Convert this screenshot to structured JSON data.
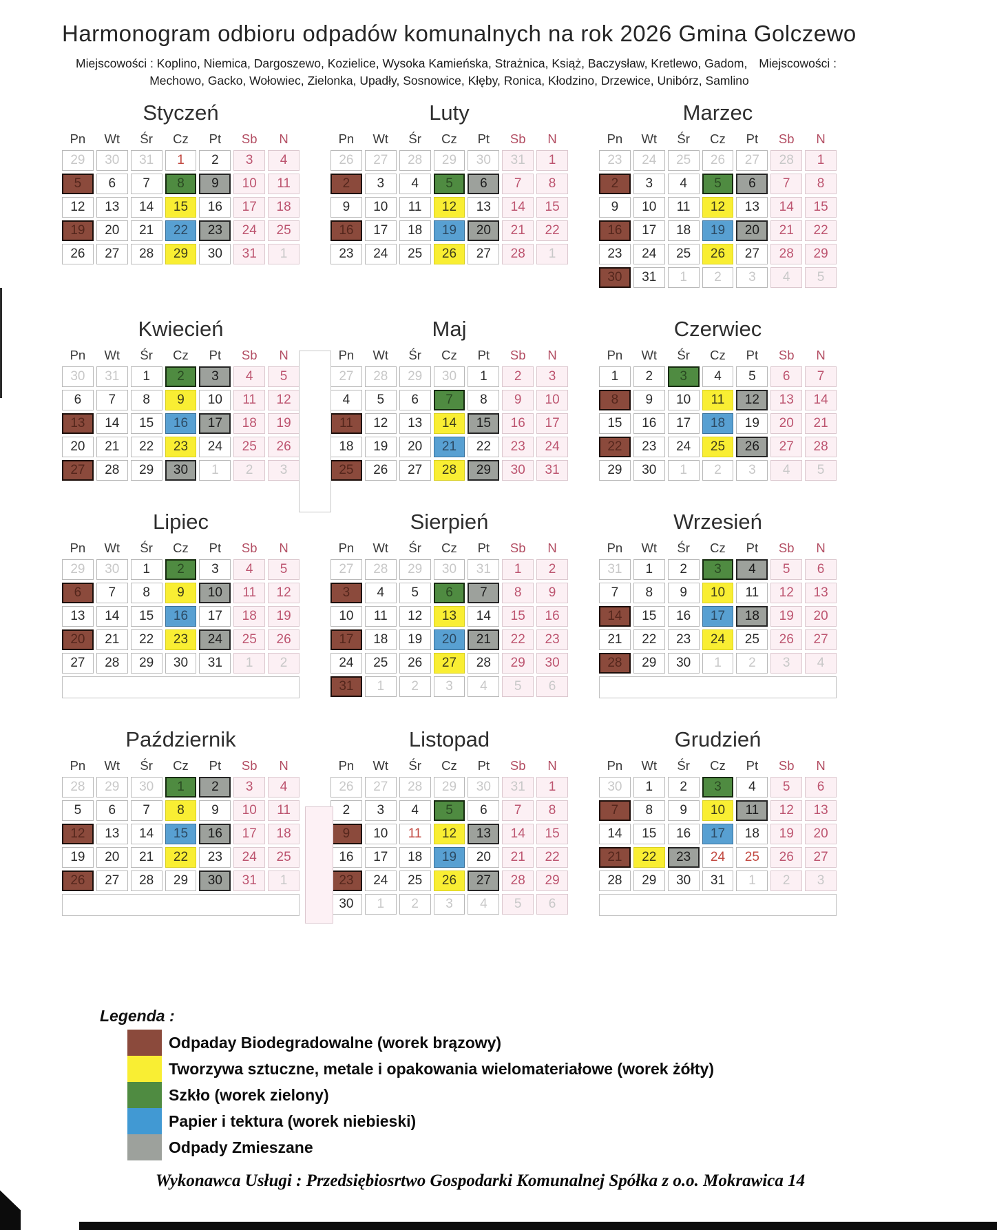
{
  "page": {
    "title": "Harmonogram odbioru odpadów komunalnych  na rok 2026 Gmina Golczewo",
    "places_label_left": "Miejscowości : Koplino, Niemica, Dargoszewo, Kozielice, Wysoka Kamieńska, Strażnica, Książ, Baczysław, Kretlewo, Gadom,",
    "places_label_right": "Miejscowości :",
    "places_line2": "Mechowo, Gacko, Wołowiec, Zielonka, Upadły, Sosnowice, Kłęby, Ronica, Kłodzino, Drzewice, Unibórz, Samlino",
    "footer": "Wykonawca Usługi : Przedsiębiosrtwo Gospodarki Komunalnej Spółka z o.o. Mokrawica 14"
  },
  "weekday_headers": [
    "Pn",
    "Wt",
    "Śr",
    "Cz",
    "Pt",
    "Sb",
    "N"
  ],
  "colors": {
    "brown": "#8b4a3c",
    "yellow": "#f9ee33",
    "green": "#4f8b41",
    "blue": "#4199d3",
    "gray": "#9da19c",
    "weekend_bg": "#fcf0f4",
    "weekend_text": "#bd5570",
    "holiday_text": "#c24a42",
    "outside_text": "#c8c8c8"
  },
  "legend": {
    "title": "Legenda :",
    "items": [
      {
        "color_key": "brown",
        "label": "Odpaday Biodegradowalne (worek brązowy)"
      },
      {
        "color_key": "yellow",
        "label": "Tworzywa sztuczne, metale i opakowania wielomateriałowe (worek żółty)"
      },
      {
        "color_key": "green",
        "label": "Szkło (worek zielony)"
      },
      {
        "color_key": "blue",
        "label": "Papier i tektura (worek niebieski)"
      },
      {
        "color_key": "gray",
        "label": "Odpady Zmieszane"
      }
    ]
  },
  "cell_code_legend": {
    "n": "normal",
    "o": "outside-month",
    "w": "weekend",
    "h": "holiday",
    "B": "brown-bio",
    "Y": "yellow-plastics",
    "G": "green-glass",
    "L": "blue-paper",
    "S": "gray-mixed"
  },
  "months": [
    {
      "name": "Styczeń",
      "empty_row": false,
      "weeks": [
        [
          "29o",
          "30o",
          "31o",
          "1h",
          "2n",
          "3w",
          "4w"
        ],
        [
          "5B",
          "6n",
          "7n",
          "8G",
          "9S",
          "10w",
          "11w"
        ],
        [
          "12n",
          "13n",
          "14n",
          "15Y",
          "16n",
          "17w",
          "18w"
        ],
        [
          "19B",
          "20n",
          "21n",
          "22L",
          "23S",
          "24w",
          "25w"
        ],
        [
          "26n",
          "27n",
          "28n",
          "29Y",
          "30n",
          "31w",
          "1o"
        ]
      ]
    },
    {
      "name": "Luty",
      "empty_row": false,
      "weeks": [
        [
          "26o",
          "27o",
          "28o",
          "29o",
          "30o",
          "31o",
          "1w"
        ],
        [
          "2B",
          "3n",
          "4n",
          "5G",
          "6S",
          "7w",
          "8w"
        ],
        [
          "9n",
          "10n",
          "11n",
          "12Y",
          "13n",
          "14w",
          "15w"
        ],
        [
          "16B",
          "17n",
          "18n",
          "19L",
          "20S",
          "21w",
          "22w"
        ],
        [
          "23n",
          "24n",
          "25n",
          "26Y",
          "27n",
          "28w",
          "1o"
        ]
      ]
    },
    {
      "name": "Marzec",
      "empty_row": false,
      "weeks": [
        [
          "23o",
          "24o",
          "25o",
          "26o",
          "27o",
          "28o",
          "1w"
        ],
        [
          "2B",
          "3n",
          "4n",
          "5G",
          "6S",
          "7w",
          "8w"
        ],
        [
          "9n",
          "10n",
          "11n",
          "12Y",
          "13n",
          "14w",
          "15w"
        ],
        [
          "16B",
          "17n",
          "18n",
          "19L",
          "20S",
          "21w",
          "22w"
        ],
        [
          "23n",
          "24n",
          "25n",
          "26Y",
          "27n",
          "28w",
          "29w"
        ],
        [
          "30B",
          "31n",
          "1o",
          "2o",
          "3o",
          "4o",
          "5o"
        ]
      ]
    },
    {
      "name": "Kwiecień",
      "empty_row": false,
      "weeks": [
        [
          "30o",
          "31o",
          "1n",
          "2G",
          "3S",
          "4w",
          "5w"
        ],
        [
          "6n",
          "7n",
          "8n",
          "9Y",
          "10n",
          "11w",
          "12w"
        ],
        [
          "13B",
          "14n",
          "15n",
          "16L",
          "17S",
          "18w",
          "19w"
        ],
        [
          "20n",
          "21n",
          "22n",
          "23Y",
          "24n",
          "25w",
          "26w"
        ],
        [
          "27B",
          "28n",
          "29n",
          "30S",
          "1o",
          "2o",
          "3o"
        ]
      ]
    },
    {
      "name": "Maj",
      "empty_row": false,
      "weeks": [
        [
          "27o",
          "28o",
          "29o",
          "30o",
          "1n",
          "2w",
          "3w"
        ],
        [
          "4n",
          "5n",
          "6n",
          "7G",
          "8n",
          "9w",
          "10w"
        ],
        [
          "11B",
          "12n",
          "13n",
          "14Y",
          "15S",
          "16w",
          "17w"
        ],
        [
          "18n",
          "19n",
          "20n",
          "21L",
          "22n",
          "23w",
          "24w"
        ],
        [
          "25B",
          "26n",
          "27n",
          "28Y",
          "29S",
          "30w",
          "31w"
        ]
      ]
    },
    {
      "name": "Czerwiec",
      "empty_row": false,
      "weeks": [
        [
          "1n",
          "2n",
          "3G",
          "4n",
          "5n",
          "6w",
          "7w"
        ],
        [
          "8B",
          "9n",
          "10n",
          "11Y",
          "12S",
          "13w",
          "14w"
        ],
        [
          "15n",
          "16n",
          "17n",
          "18L",
          "19n",
          "20w",
          "21w"
        ],
        [
          "22B",
          "23n",
          "24n",
          "25Y",
          "26S",
          "27w",
          "28w"
        ],
        [
          "29n",
          "30n",
          "1o",
          "2o",
          "3o",
          "4o",
          "5o"
        ]
      ]
    },
    {
      "name": "Lipiec",
      "empty_row": true,
      "weeks": [
        [
          "29o",
          "30o",
          "1n",
          "2G",
          "3n",
          "4w",
          "5w"
        ],
        [
          "6B",
          "7n",
          "8n",
          "9Y",
          "10S",
          "11w",
          "12w"
        ],
        [
          "13n",
          "14n",
          "15n",
          "16L",
          "17n",
          "18w",
          "19w"
        ],
        [
          "20B",
          "21n",
          "22n",
          "23Y",
          "24S",
          "25w",
          "26w"
        ],
        [
          "27n",
          "28n",
          "29n",
          "30n",
          "31n",
          "1o",
          "2o"
        ]
      ]
    },
    {
      "name": "Sierpień",
      "empty_row": false,
      "weeks": [
        [
          "27o",
          "28o",
          "29o",
          "30o",
          "31o",
          "1w",
          "2w"
        ],
        [
          "3B",
          "4n",
          "5n",
          "6G",
          "7S",
          "8w",
          "9w"
        ],
        [
          "10n",
          "11n",
          "12n",
          "13Y",
          "14n",
          "15w",
          "16w"
        ],
        [
          "17B",
          "18n",
          "19n",
          "20L",
          "21S",
          "22w",
          "23w"
        ],
        [
          "24n",
          "25n",
          "26n",
          "27Y",
          "28n",
          "29w",
          "30w"
        ],
        [
          "31B",
          "1o",
          "2o",
          "3o",
          "4o",
          "5o",
          "6o"
        ]
      ]
    },
    {
      "name": "Wrzesień",
      "empty_row": true,
      "weeks": [
        [
          "31o",
          "1n",
          "2n",
          "3G",
          "4S",
          "5w",
          "6w"
        ],
        [
          "7n",
          "8n",
          "9n",
          "10Y",
          "11n",
          "12w",
          "13w"
        ],
        [
          "14B",
          "15n",
          "16n",
          "17L",
          "18S",
          "19w",
          "20w"
        ],
        [
          "21n",
          "22n",
          "23n",
          "24Y",
          "25n",
          "26w",
          "27w"
        ],
        [
          "28B",
          "29n",
          "30n",
          "1o",
          "2o",
          "3o",
          "4o"
        ]
      ]
    },
    {
      "name": "Październik",
      "empty_row": true,
      "weeks": [
        [
          "28o",
          "29o",
          "30o",
          "1G",
          "2S",
          "3w",
          "4w"
        ],
        [
          "5n",
          "6n",
          "7n",
          "8Y",
          "9n",
          "10w",
          "11w"
        ],
        [
          "12B",
          "13n",
          "14n",
          "15L",
          "16S",
          "17w",
          "18w"
        ],
        [
          "19n",
          "20n",
          "21n",
          "22Y",
          "23n",
          "24w",
          "25w"
        ],
        [
          "26B",
          "27n",
          "28n",
          "29n",
          "30S",
          "31w",
          "1o"
        ]
      ]
    },
    {
      "name": "Listopad",
      "empty_row": false,
      "weeks": [
        [
          "26o",
          "27o",
          "28o",
          "29o",
          "30o",
          "31o",
          "1w"
        ],
        [
          "2n",
          "3n",
          "4n",
          "5G",
          "6n",
          "7w",
          "8w"
        ],
        [
          "9B",
          "10n",
          "11h",
          "12Y",
          "13S",
          "14w",
          "15w"
        ],
        [
          "16n",
          "17n",
          "18n",
          "19L",
          "20n",
          "21w",
          "22w"
        ],
        [
          "23B",
          "24n",
          "25n",
          "26Y",
          "27S",
          "28w",
          "29w"
        ],
        [
          "30n",
          "1o",
          "2o",
          "3o",
          "4o",
          "5o",
          "6o"
        ]
      ]
    },
    {
      "name": "Grudzień",
      "empty_row": true,
      "weeks": [
        [
          "30o",
          "1n",
          "2n",
          "3G",
          "4n",
          "5w",
          "6w"
        ],
        [
          "7B",
          "8n",
          "9n",
          "10Y",
          "11S",
          "12w",
          "13w"
        ],
        [
          "14n",
          "15n",
          "16n",
          "17L",
          "18n",
          "19w",
          "20w"
        ],
        [
          "21B",
          "22Y",
          "23S",
          "24h",
          "25h",
          "26w",
          "27w"
        ],
        [
          "28n",
          "29n",
          "30n",
          "31n",
          "1o",
          "2o",
          "3o"
        ]
      ]
    }
  ]
}
